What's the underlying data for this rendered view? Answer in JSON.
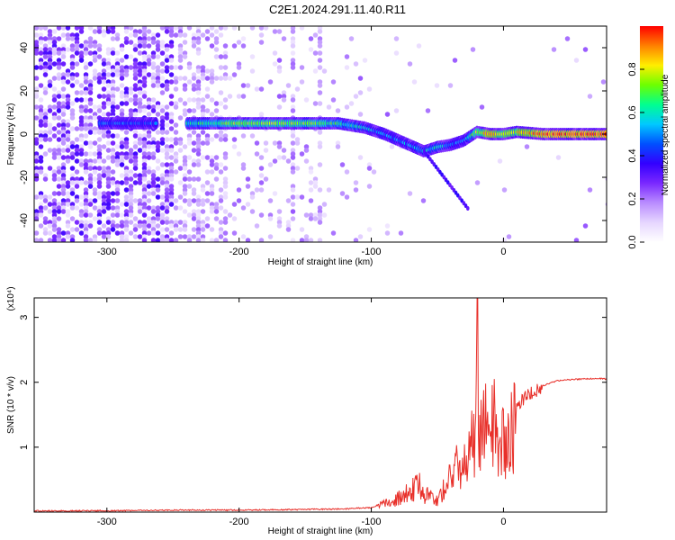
{
  "title": "C2E1.2024.291.11.40.R11",
  "colors": {
    "snr_line": "#e8302a",
    "colormap": [
      "#ffffff",
      "#e6d6ff",
      "#b98cff",
      "#7a28ff",
      "#3300ff",
      "#0050ff",
      "#00c8ff",
      "#00ff90",
      "#6cff00",
      "#ffee00",
      "#ff8000",
      "#ff0000"
    ]
  },
  "chart_data": [
    {
      "type": "heatmap",
      "xlabel": "Height of straight line (km)",
      "ylabel": "Frequency (Hz)",
      "xlim": [
        -355,
        78
      ],
      "ylim": [
        -50,
        50
      ],
      "xticks": [
        -300,
        -200,
        -100,
        0
      ],
      "yticks": [
        -40,
        -20,
        0,
        20,
        40
      ],
      "colorbar": {
        "label": "Normalized spectral amplitude",
        "range": [
          0,
          1
        ],
        "ticks": [
          0.0,
          0.2,
          0.4,
          0.6,
          0.8
        ]
      },
      "ridge": {
        "x": [
          -300,
          -260,
          -240,
          -200,
          -150,
          -125,
          -105,
          -90,
          -75,
          -60,
          -50,
          -40,
          -30,
          -20,
          -10,
          0,
          10,
          30,
          78
        ],
        "freq": [
          5,
          5,
          5,
          5,
          5,
          5,
          3,
          0,
          -4,
          -8,
          -6,
          -5,
          -3,
          1,
          0,
          0,
          1,
          0,
          0
        ],
        "amplitude": [
          0.5,
          0.45,
          0.6,
          0.75,
          0.75,
          0.65,
          0.55,
          0.5,
          0.5,
          0.55,
          0.6,
          0.5,
          0.5,
          0.75,
          0.9,
          0.8,
          0.8,
          0.95,
          0.95
        ]
      }
    },
    {
      "type": "line",
      "xlabel": "Height of straight line (km)",
      "ylabel": "SNR (10 * v/v)",
      "y_multiplier": "(x10⁴)",
      "xlim": [
        -355,
        78
      ],
      "ylim": [
        0,
        3.3
      ],
      "xticks": [
        -300,
        -200,
        -100,
        0
      ],
      "yticks": [
        1,
        2,
        3
      ],
      "series": [
        {
          "x": [
            -355,
            -300,
            -250,
            -200,
            -150,
            -120,
            -100,
            -90,
            -80,
            -70,
            -65,
            -60,
            -55,
            -50,
            -45,
            -40,
            -35,
            -30,
            -25,
            -22,
            -20,
            -18,
            -15,
            -10,
            -8,
            -5,
            0,
            5,
            10,
            20,
            30,
            40,
            50,
            60,
            70,
            78
          ],
          "y": [
            0.02,
            0.02,
            0.03,
            0.03,
            0.04,
            0.05,
            0.07,
            0.15,
            0.25,
            0.4,
            0.55,
            0.35,
            0.3,
            0.2,
            0.45,
            0.65,
            0.85,
            0.9,
            1.2,
            1.4,
            3.3,
            1.45,
            1.55,
            1.7,
            1.9,
            1.2,
            1.4,
            1.55,
            1.7,
            1.85,
            1.95,
            2.02,
            2.04,
            2.05,
            2.06,
            2.05
          ]
        }
      ]
    }
  ]
}
